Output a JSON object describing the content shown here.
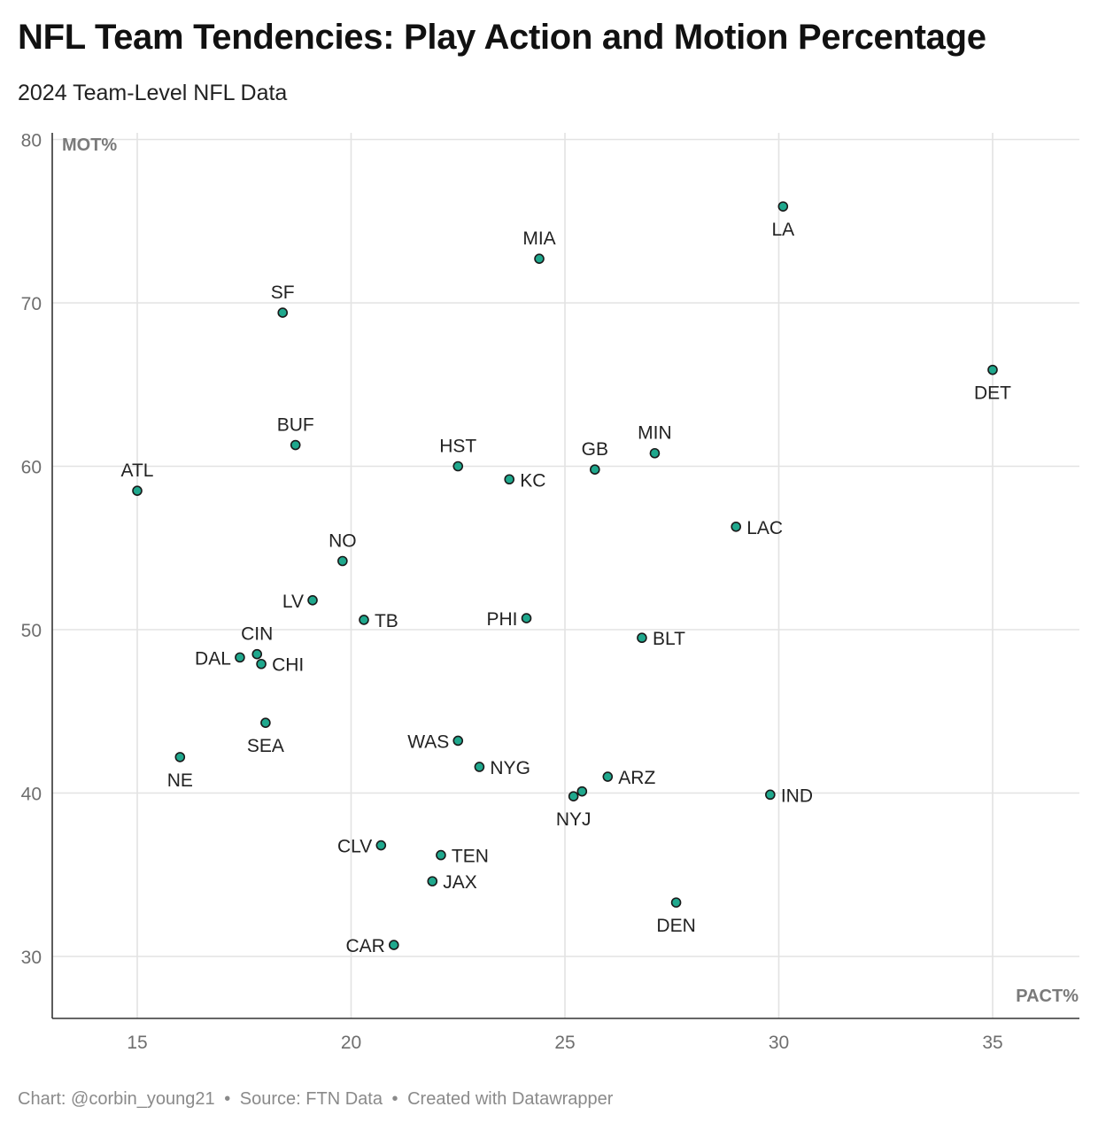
{
  "header": {
    "title": "NFL Team Tendencies: Play Action and Motion Percentage",
    "subtitle": "2024 Team-Level NFL Data"
  },
  "footer": {
    "credit": "Chart: @corbin_young21",
    "source": "Source: FTN Data",
    "tool": "Created with Datawrapper",
    "separator": "•"
  },
  "colors": {
    "point_fill": "#1fa88d",
    "point_stroke": "#1a1a1a",
    "grid": "#e3e3e3",
    "axis": "#333333",
    "tick_label": "#6e6e6e",
    "axis_label": "#7a7a7a",
    "point_label": "#222222"
  },
  "chart_data": {
    "type": "scatter",
    "xlabel": "PACT%",
    "ylabel": "MOT%",
    "xlim": [
      13,
      37
    ],
    "ylim": [
      26.2,
      80.4
    ],
    "x_ticks": [
      15,
      20,
      25,
      30,
      35
    ],
    "y_ticks": [
      30,
      40,
      50,
      60,
      70,
      80
    ],
    "grid": true,
    "points": [
      {
        "team": "LA",
        "x": 30.1,
        "y": 75.9,
        "label_pos": "below"
      },
      {
        "team": "MIA",
        "x": 24.4,
        "y": 72.7,
        "label_pos": "above"
      },
      {
        "team": "SF",
        "x": 18.4,
        "y": 69.4,
        "label_pos": "above"
      },
      {
        "team": "DET",
        "x": 35.0,
        "y": 65.9,
        "label_pos": "below"
      },
      {
        "team": "BUF",
        "x": 18.7,
        "y": 61.3,
        "label_pos": "above"
      },
      {
        "team": "MIN",
        "x": 27.1,
        "y": 60.8,
        "label_pos": "above"
      },
      {
        "team": "HST",
        "x": 22.5,
        "y": 60.0,
        "label_pos": "above"
      },
      {
        "team": "GB",
        "x": 25.7,
        "y": 59.8,
        "label_pos": "above"
      },
      {
        "team": "KC",
        "x": 23.7,
        "y": 59.2,
        "label_pos": "right"
      },
      {
        "team": "ATL",
        "x": 15.0,
        "y": 58.5,
        "label_pos": "above"
      },
      {
        "team": "LAC",
        "x": 29.0,
        "y": 56.3,
        "label_pos": "right"
      },
      {
        "team": "NO",
        "x": 19.8,
        "y": 54.2,
        "label_pos": "above"
      },
      {
        "team": "LV",
        "x": 19.1,
        "y": 51.8,
        "label_pos": "left"
      },
      {
        "team": "PHI",
        "x": 24.1,
        "y": 50.7,
        "label_pos": "left"
      },
      {
        "team": "TB",
        "x": 20.3,
        "y": 50.6,
        "label_pos": "right"
      },
      {
        "team": "BLT",
        "x": 26.8,
        "y": 49.5,
        "label_pos": "right"
      },
      {
        "team": "CIN",
        "x": 17.8,
        "y": 48.5,
        "label_pos": "above"
      },
      {
        "team": "DAL",
        "x": 17.4,
        "y": 48.3,
        "label_pos": "left"
      },
      {
        "team": "CHI",
        "x": 17.9,
        "y": 47.9,
        "label_pos": "right"
      },
      {
        "team": "SEA",
        "x": 18.0,
        "y": 44.3,
        "label_pos": "below"
      },
      {
        "team": "WAS",
        "x": 22.5,
        "y": 43.2,
        "label_pos": "left"
      },
      {
        "team": "NE",
        "x": 16.0,
        "y": 42.2,
        "label_pos": "below"
      },
      {
        "team": "NYG",
        "x": 23.0,
        "y": 41.6,
        "label_pos": "right"
      },
      {
        "team": "ARZ",
        "x": 26.0,
        "y": 41.0,
        "label_pos": "right"
      },
      {
        "team": "",
        "x": 25.4,
        "y": 40.1,
        "label_pos": "none"
      },
      {
        "team": "IND",
        "x": 29.8,
        "y": 39.9,
        "label_pos": "right"
      },
      {
        "team": "NYJ",
        "x": 25.2,
        "y": 39.8,
        "label_pos": "below"
      },
      {
        "team": "CLV",
        "x": 20.7,
        "y": 36.8,
        "label_pos": "left"
      },
      {
        "team": "TEN",
        "x": 22.1,
        "y": 36.2,
        "label_pos": "right"
      },
      {
        "team": "JAX",
        "x": 21.9,
        "y": 34.6,
        "label_pos": "right"
      },
      {
        "team": "DEN",
        "x": 27.6,
        "y": 33.3,
        "label_pos": "below"
      },
      {
        "team": "CAR",
        "x": 21.0,
        "y": 30.7,
        "label_pos": "left"
      }
    ]
  }
}
